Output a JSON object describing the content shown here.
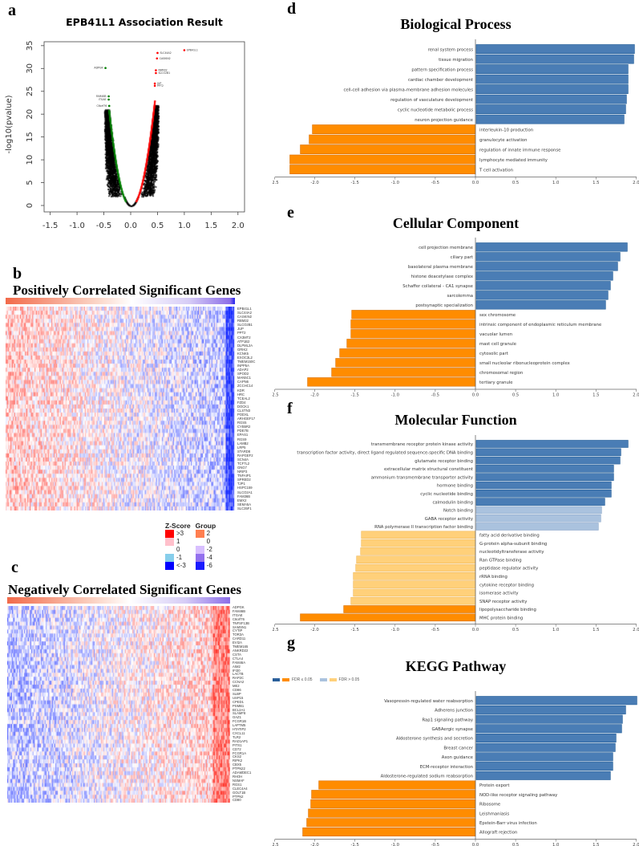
{
  "panels": {
    "a": "a",
    "b": "b",
    "c": "c",
    "d": "d",
    "e": "e",
    "f": "f",
    "g": "g"
  },
  "chart_data": [
    {
      "id": "volcano",
      "type": "scatter",
      "title": "EPB41L1 Association Result",
      "xlabel": "",
      "ylabel": "-log10(pvalue)",
      "xlim": [
        -1.6,
        2.1
      ],
      "ylim": [
        0,
        35
      ],
      "xticks": [
        "-1.5",
        "-1.0",
        "-0.5",
        "0.0",
        "0.5",
        "1.0",
        "1.5",
        "2.0"
      ],
      "yticks": [
        "0",
        "5",
        "10",
        "15",
        "20",
        "25",
        "30",
        "35"
      ],
      "colors": {
        "positive": "#ff0000",
        "negative": "#008000",
        "other": "#000000"
      },
      "labeled_points": [
        {
          "label": "EPB41L1",
          "x": 1.0,
          "y": 34.0,
          "group": "positive"
        },
        {
          "label": "SLC44A2",
          "x": 0.5,
          "y": 33.4,
          "group": "positive"
        },
        {
          "label": "CASKIN2",
          "x": 0.49,
          "y": 32.2,
          "group": "positive"
        },
        {
          "label": "RBM32",
          "x": 0.47,
          "y": 29.6,
          "group": "positive"
        },
        {
          "label": "SLCO2B1",
          "x": 0.47,
          "y": 29.0,
          "group": "positive"
        },
        {
          "label": "JUP",
          "x": 0.45,
          "y": 26.7,
          "group": "positive"
        },
        {
          "label": "PPT2",
          "x": 0.45,
          "y": 26.2,
          "group": "positive"
        },
        {
          "label": "ADPGK",
          "x": -0.47,
          "y": 30.1,
          "group": "negative"
        },
        {
          "label": "FAM46B",
          "x": -0.41,
          "y": 23.9,
          "group": "negative"
        },
        {
          "label": "ITGAE",
          "x": -0.41,
          "y": 23.2,
          "group": "negative"
        },
        {
          "label": "C6orf76",
          "x": -0.4,
          "y": 21.8,
          "group": "negative"
        }
      ]
    },
    {
      "id": "heatmap-positive",
      "type": "heatmap",
      "title": "Positively Correlated Significant Genes",
      "genes": [
        "EPB41L1",
        "SLC44A2",
        "CASKIN2",
        "RBM32",
        "SLCO2B1",
        "JUP",
        "PPT2",
        "CX3MT2",
        "ATP1B2",
        "DLPML2A",
        "GRIK2",
        "KCNK5",
        "EXOC3L2",
        "TMEM150C",
        "INPP5A",
        "ADAP2",
        "SPOD2",
        "MAN5C1",
        "CAPN6",
        "ZCCHC14",
        "KDR",
        "HRC",
        "TCEAL2",
        "FZD4",
        "DOCK1",
        "CLSTN3",
        "PODXL",
        "ARHGEF17",
        "RGS5",
        "CYB5R2",
        "PDE7B",
        "EPAS1",
        "RGS9",
        "LAMB2",
        "LRP5",
        "STARD8",
        "RAPGEF2",
        "SCN4A",
        "TCF7L2",
        "GNG7",
        "NRIP3",
        "TNFAIP1",
        "SPRED2",
        "TJP1",
        "HSPC159",
        "SLCO2A1",
        "FAM36B",
        "EMX2",
        "SEMA5A",
        "SLC35F1"
      ],
      "trend": "high-left"
    },
    {
      "id": "heatmap-negative",
      "type": "heatmap",
      "title": "Negatively Correlated Significant Genes",
      "genes": [
        "ADPGK",
        "FAM46B",
        "ITGAE",
        "C6orf76",
        "TNFSF13B",
        "SAMSN1",
        "CYTIP",
        "TOR3A",
        "CARD11",
        "EVI2A",
        "TMEM165",
        "ANKRD22",
        "CSTA",
        "CTLA4",
        "FAM46A",
        "AIM2",
        "IFI30",
        "LACTB",
        "RAP2C",
        "CCNA2",
        "ME2",
        "CD86",
        "SLBP",
        "USP15",
        "CPED1",
        "PSMB1",
        "BCL2A1",
        "SLAMF8",
        "OAZ1",
        "FCGR1B",
        "LAPTM5",
        "HTATIP2",
        "CXCL11",
        "TLR2",
        "RAD1AP1",
        "PITX1",
        "CD72",
        "FCGR1A",
        "CKS2",
        "RIPK2",
        "CBX5",
        "PTPN22",
        "ADAMDEC1",
        "RHOH",
        "NSMAF",
        "RGS1",
        "CLEC4A4",
        "GOLT1B",
        "PTPN2",
        "CD80"
      ],
      "trend": "high-right"
    },
    {
      "id": "bp",
      "type": "bar",
      "title": "Biological Process",
      "xlim": [
        -2.5,
        2.0
      ],
      "xticks": [
        "-2.5",
        "-2.0",
        "-1.5",
        "-1.0",
        "-0.5",
        "0.0",
        "0.5",
        "1.0",
        "1.5",
        "2.0"
      ],
      "bars": [
        {
          "label": "renal system process",
          "value": 1.97,
          "fdr_sig": true
        },
        {
          "label": "tissue migration",
          "value": 1.96,
          "fdr_sig": true
        },
        {
          "label": "pattern specification process",
          "value": 1.89,
          "fdr_sig": true
        },
        {
          "label": "cardiac chamber development",
          "value": 1.89,
          "fdr_sig": true
        },
        {
          "label": "cell-cell adhesion via plasma-membrane adhesion molecules",
          "value": 1.89,
          "fdr_sig": true
        },
        {
          "label": "regulation of vasculature development",
          "value": 1.87,
          "fdr_sig": true
        },
        {
          "label": "cyclic nucleotide metabolic process",
          "value": 1.86,
          "fdr_sig": true
        },
        {
          "label": "neuron projection guidance",
          "value": 1.84,
          "fdr_sig": true
        },
        {
          "label": "interleukin-10 production",
          "value": -2.03,
          "fdr_sig": true
        },
        {
          "label": "granulocyte activation",
          "value": -2.07,
          "fdr_sig": true
        },
        {
          "label": "regulation of innate immune response",
          "value": -2.18,
          "fdr_sig": true
        },
        {
          "label": "lymphocyte mediated immunity",
          "value": -2.31,
          "fdr_sig": true
        },
        {
          "label": "T cell activation",
          "value": -2.31,
          "fdr_sig": true
        }
      ]
    },
    {
      "id": "cc",
      "type": "bar",
      "title": "Cellular Component",
      "xlim": [
        -2.5,
        2.0
      ],
      "xticks": [
        "-2.5",
        "-2.0",
        "-1.5",
        "-1.0",
        "-0.5",
        "0.0",
        "0.5",
        "1.0",
        "1.5",
        "2.0"
      ],
      "bars": [
        {
          "label": "cell projection membrane",
          "value": 1.88,
          "fdr_sig": true
        },
        {
          "label": "ciliary part",
          "value": 1.79,
          "fdr_sig": true
        },
        {
          "label": "basolateral plasma membrane",
          "value": 1.76,
          "fdr_sig": true
        },
        {
          "label": "histone deacetylase complex",
          "value": 1.7,
          "fdr_sig": true
        },
        {
          "label": "Schaffer collateral - CA1 synapse",
          "value": 1.67,
          "fdr_sig": true
        },
        {
          "label": "sarcolemma",
          "value": 1.64,
          "fdr_sig": true
        },
        {
          "label": "postsynaptic specialization",
          "value": 1.61,
          "fdr_sig": true
        },
        {
          "label": "sex chromosome",
          "value": -1.54,
          "fdr_sig": true
        },
        {
          "label": "intrinsic component of endoplasmic reticulum membrane",
          "value": -1.55,
          "fdr_sig": true
        },
        {
          "label": "vacuolar lumen",
          "value": -1.55,
          "fdr_sig": true
        },
        {
          "label": "mast cell granule",
          "value": -1.6,
          "fdr_sig": true
        },
        {
          "label": "cytosolic part",
          "value": -1.69,
          "fdr_sig": true
        },
        {
          "label": "small nucleolar ribonucleoprotein complex",
          "value": -1.74,
          "fdr_sig": true
        },
        {
          "label": "chromosomal region",
          "value": -1.79,
          "fdr_sig": true
        },
        {
          "label": "tertiary granule",
          "value": -2.09,
          "fdr_sig": true
        }
      ]
    },
    {
      "id": "mf",
      "type": "bar",
      "title": "Molecular Function",
      "xlim": [
        -2.5,
        2.0
      ],
      "xticks": [
        "-2.5",
        "-2.0",
        "-1.5",
        "-1.0",
        "-0.5",
        "0.0",
        "0.5",
        "1.0",
        "1.5",
        "2.0"
      ],
      "bars": [
        {
          "label": "transmembrane receptor protein kinase activity",
          "value": 1.89,
          "fdr_sig": true
        },
        {
          "label": "transcription factor activity, direct ligand regulated sequence-specific DNA binding",
          "value": 1.8,
          "fdr_sig": true
        },
        {
          "label": "glutamate receptor binding",
          "value": 1.79,
          "fdr_sig": true
        },
        {
          "label": "extracellular matrix structural constituent",
          "value": 1.71,
          "fdr_sig": true
        },
        {
          "label": "ammonium transmembrane transporter activity",
          "value": 1.71,
          "fdr_sig": true
        },
        {
          "label": "hormone binding",
          "value": 1.68,
          "fdr_sig": true
        },
        {
          "label": "cyclic nucleotide binding",
          "value": 1.68,
          "fdr_sig": true
        },
        {
          "label": "calmodulin binding",
          "value": 1.6,
          "fdr_sig": true
        },
        {
          "label": "Notch binding",
          "value": 1.56,
          "fdr_sig": false
        },
        {
          "label": "GABA receptor activity",
          "value": 1.55,
          "fdr_sig": false
        },
        {
          "label": "RNA polymerase II transcription factor binding",
          "value": 1.52,
          "fdr_sig": false
        },
        {
          "label": "fatty acid derivative binding",
          "value": -1.42,
          "fdr_sig": false
        },
        {
          "label": "G-protein alpha-subunit binding",
          "value": -1.42,
          "fdr_sig": false
        },
        {
          "label": "nucleotidyltransferase activity",
          "value": -1.43,
          "fdr_sig": false
        },
        {
          "label": "Ran GTPase binding",
          "value": -1.48,
          "fdr_sig": false
        },
        {
          "label": "peptidase regulator activity",
          "value": -1.49,
          "fdr_sig": false
        },
        {
          "label": "rRNA binding",
          "value": -1.52,
          "fdr_sig": false
        },
        {
          "label": "cytokine receptor binding",
          "value": -1.52,
          "fdr_sig": false
        },
        {
          "label": "isomerase activity",
          "value": -1.52,
          "fdr_sig": false
        },
        {
          "label": "SNAP receptor activity",
          "value": -1.55,
          "fdr_sig": false
        },
        {
          "label": "lipopolysaccharide binding",
          "value": -1.64,
          "fdr_sig": true
        },
        {
          "label": "MHC protein binding",
          "value": -2.18,
          "fdr_sig": true
        }
      ]
    },
    {
      "id": "kegg",
      "type": "bar",
      "title": "KEGG Pathway",
      "legend": [
        "FDR ≤ 0.05",
        "FDR > 0.05"
      ],
      "legend_position": "top-left",
      "xlim": [
        -2.5,
        2.0
      ],
      "xticks": [
        "-2.5",
        "-2.0",
        "-1.5",
        "-1.0",
        "-0.5",
        "0.0",
        "0.5",
        "1.0",
        "1.5",
        "2.0"
      ],
      "bars": [
        {
          "label": "Vasopressin-regulated water reabsorption",
          "value": 2.0,
          "fdr_sig": true
        },
        {
          "label": "Adherens junction",
          "value": 1.86,
          "fdr_sig": true
        },
        {
          "label": "Rap1 signaling pathway",
          "value": 1.82,
          "fdr_sig": true
        },
        {
          "label": "GABAergic synapse",
          "value": 1.81,
          "fdr_sig": true
        },
        {
          "label": "Aldosterone synthesis and secretion",
          "value": 1.74,
          "fdr_sig": true
        },
        {
          "label": "Breast cancer",
          "value": 1.73,
          "fdr_sig": true
        },
        {
          "label": "Axon guidance",
          "value": 1.7,
          "fdr_sig": true
        },
        {
          "label": "ECM-receptor interaction",
          "value": 1.7,
          "fdr_sig": true
        },
        {
          "label": "Aldosterone-regulated sodium reabsorption",
          "value": 1.67,
          "fdr_sig": true
        },
        {
          "label": "Protein export",
          "value": -1.95,
          "fdr_sig": true
        },
        {
          "label": "NOD-like receptor signaling pathway",
          "value": -2.04,
          "fdr_sig": true
        },
        {
          "label": "Ribosome",
          "value": -2.05,
          "fdr_sig": true
        },
        {
          "label": "Leishmaniasis",
          "value": -2.08,
          "fdr_sig": true
        },
        {
          "label": "Epstein-Barr virus infection",
          "value": -2.1,
          "fdr_sig": true
        },
        {
          "label": "Allograft rejection",
          "value": -2.15,
          "fdr_sig": true
        }
      ]
    }
  ],
  "heatmap_legend": {
    "zscore_title": "Z-Score",
    "group_title": "Group",
    "zscore": [
      {
        "label": ">3",
        "color": "#ff0000"
      },
      {
        "label": "1",
        "color": "#ffc0cb"
      },
      {
        "label": "0",
        "color": "#ffffff"
      },
      {
        "label": "-1",
        "color": "#87ceeb"
      },
      {
        "label": "<-3",
        "color": "#0000ff"
      }
    ],
    "group": [
      {
        "label": "2",
        "color": "#ff7f50"
      },
      {
        "label": "0",
        "color": "#ffffff"
      },
      {
        "label": "-2",
        "color": "#d8bfff"
      },
      {
        "label": "-4",
        "color": "#9370ee"
      },
      {
        "label": "-6",
        "color": "#1a1aff"
      }
    ]
  },
  "colors": {
    "sig_pos": "#4a7db5",
    "sig_pos_stroke": "#1e5a96",
    "nonsig_pos": "#aac2de",
    "sig_neg": "#ff8c00",
    "sig_neg_stroke": "#d96f00",
    "nonsig_neg": "#ffd07a"
  }
}
